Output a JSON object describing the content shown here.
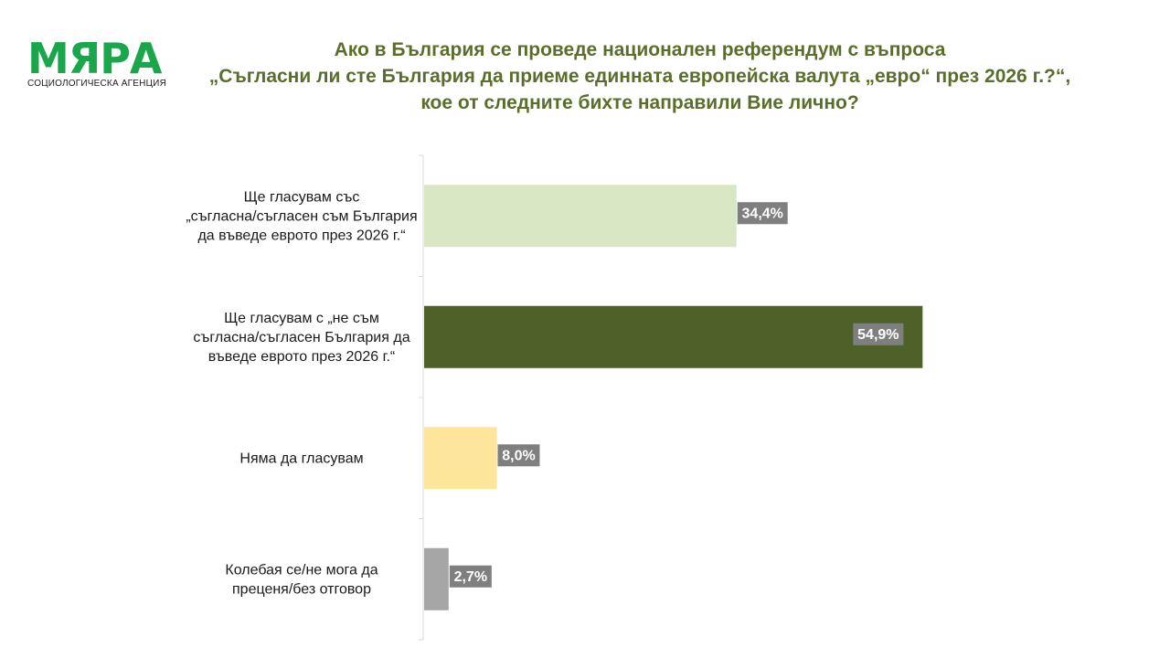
{
  "logo": {
    "name": "МЯРА",
    "subtitle": "СОЦИОЛОГИЧЕСКА АГЕНЦИЯ"
  },
  "title_lines": [
    "Ако в България се проведе национален референдум с въпроса",
    "„Съгласни ли сте България да приеме единната европейска валута „евро“ през 2026 г.?“,",
    "кое от следните бихте направили Вие лично?"
  ],
  "colors": {
    "brand": "#1aa64a",
    "title": "#5a6e2b",
    "axis": "#d9d9d9",
    "label_box": "#7f7f7f"
  },
  "chart_data": {
    "type": "bar",
    "orientation": "horizontal",
    "categories": [
      [
        "Ще гласувам със",
        "„съгласна/съгласен съм България",
        "да въведе еврото през 2026 г.“"
      ],
      [
        "Ще гласувам с „не съм",
        "съгласна/съгласен България да",
        "въведе еврото през 2026 г.“"
      ],
      [
        "Няма да гласувам"
      ],
      [
        "Колебая се/не мога да",
        "преценя/без отговор"
      ]
    ],
    "values": [
      34.4,
      54.9,
      8.0,
      2.7
    ],
    "value_labels": [
      "34,4%",
      "54,9%",
      "8,0%",
      "2,7%"
    ],
    "bar_colors": [
      "#d9e6c3",
      "#4e6128",
      "#fde59b",
      "#a6a6a6"
    ],
    "xlim": [
      0,
      60
    ],
    "unit": "%",
    "grid": false,
    "legend": "none"
  }
}
